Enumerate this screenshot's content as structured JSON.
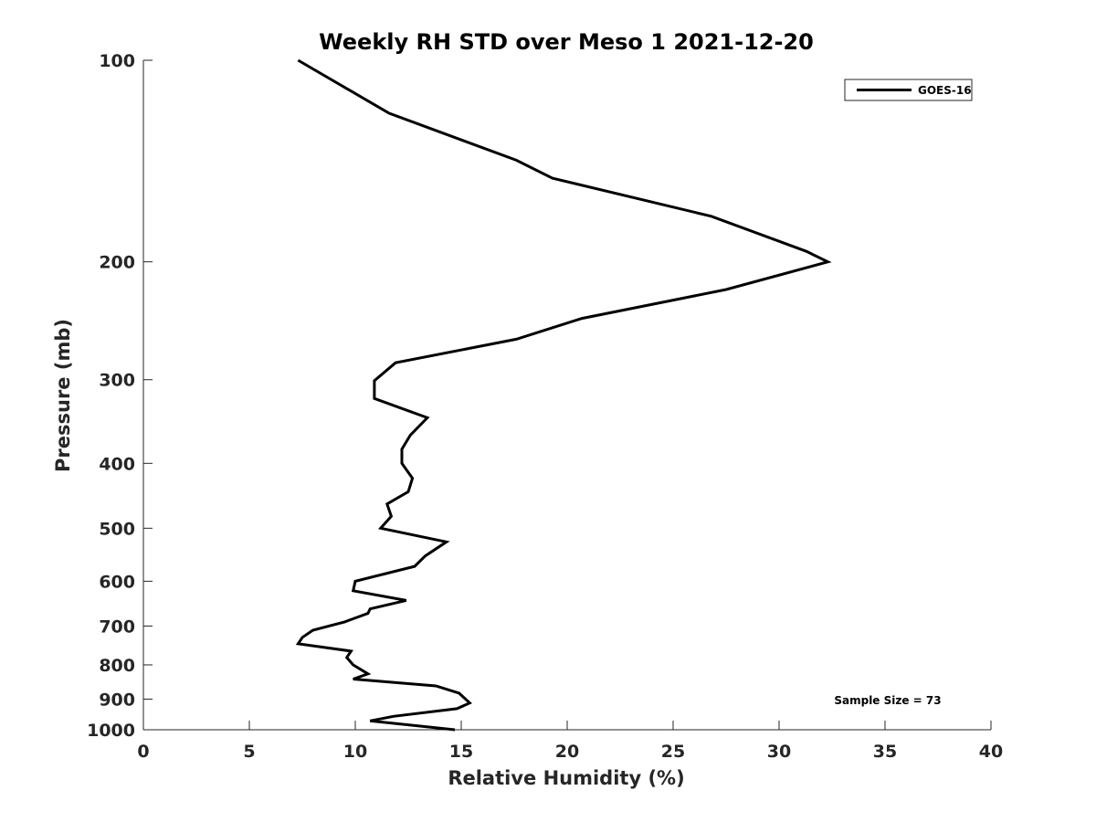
{
  "chart_data": {
    "type": "line",
    "title": "Weekly RH STD over Meso 1 2021-12-20",
    "xlabel": "Relative Humidity (%)",
    "ylabel": "Pressure (mb)",
    "xlim": [
      0,
      40
    ],
    "ylim": [
      100,
      1000
    ],
    "yscale": "log",
    "y_reversed": true,
    "grid": false,
    "legend_position": "top-right",
    "x_ticks": [
      "0",
      "5",
      "10",
      "15",
      "20",
      "25",
      "30",
      "35",
      "40"
    ],
    "y_ticks": [
      "100",
      "200",
      "300",
      "400",
      "500",
      "600",
      "700",
      "800",
      "900",
      "1000"
    ],
    "annotation": "Sample Size = 73",
    "series": [
      {
        "name": "GOES-16",
        "color": "#000000",
        "points": [
          [
            7.3,
            100
          ],
          [
            11.6,
            120
          ],
          [
            17.6,
            141
          ],
          [
            19.3,
            150
          ],
          [
            26.8,
            171
          ],
          [
            31.3,
            193
          ],
          [
            32.3,
            200
          ],
          [
            27.5,
            220
          ],
          [
            20.7,
            243
          ],
          [
            17.6,
            261
          ],
          [
            11.9,
            283
          ],
          [
            10.9,
            301
          ],
          [
            10.9,
            320
          ],
          [
            13.4,
            342
          ],
          [
            12.6,
            363
          ],
          [
            12.2,
            381
          ],
          [
            12.2,
            400
          ],
          [
            12.7,
            421
          ],
          [
            12.5,
            441
          ],
          [
            11.5,
            460
          ],
          [
            11.7,
            480
          ],
          [
            11.2,
            500
          ],
          [
            14.3,
            524
          ],
          [
            13.3,
            550
          ],
          [
            12.8,
            570
          ],
          [
            10.0,
            600
          ],
          [
            9.9,
            620
          ],
          [
            12.4,
            641
          ],
          [
            10.7,
            660
          ],
          [
            10.6,
            670
          ],
          [
            9.5,
            690
          ],
          [
            8.0,
            710
          ],
          [
            7.5,
            728
          ],
          [
            7.3,
            744
          ],
          [
            9.8,
            763
          ],
          [
            9.6,
            780
          ],
          [
            9.9,
            800
          ],
          [
            10.6,
            825
          ],
          [
            9.9,
            840
          ],
          [
            13.8,
            860
          ],
          [
            14.9,
            882
          ],
          [
            15.4,
            912
          ],
          [
            14.8,
            930
          ],
          [
            11.8,
            955
          ],
          [
            10.7,
            970
          ],
          [
            14.7,
            1000
          ]
        ]
      }
    ]
  }
}
